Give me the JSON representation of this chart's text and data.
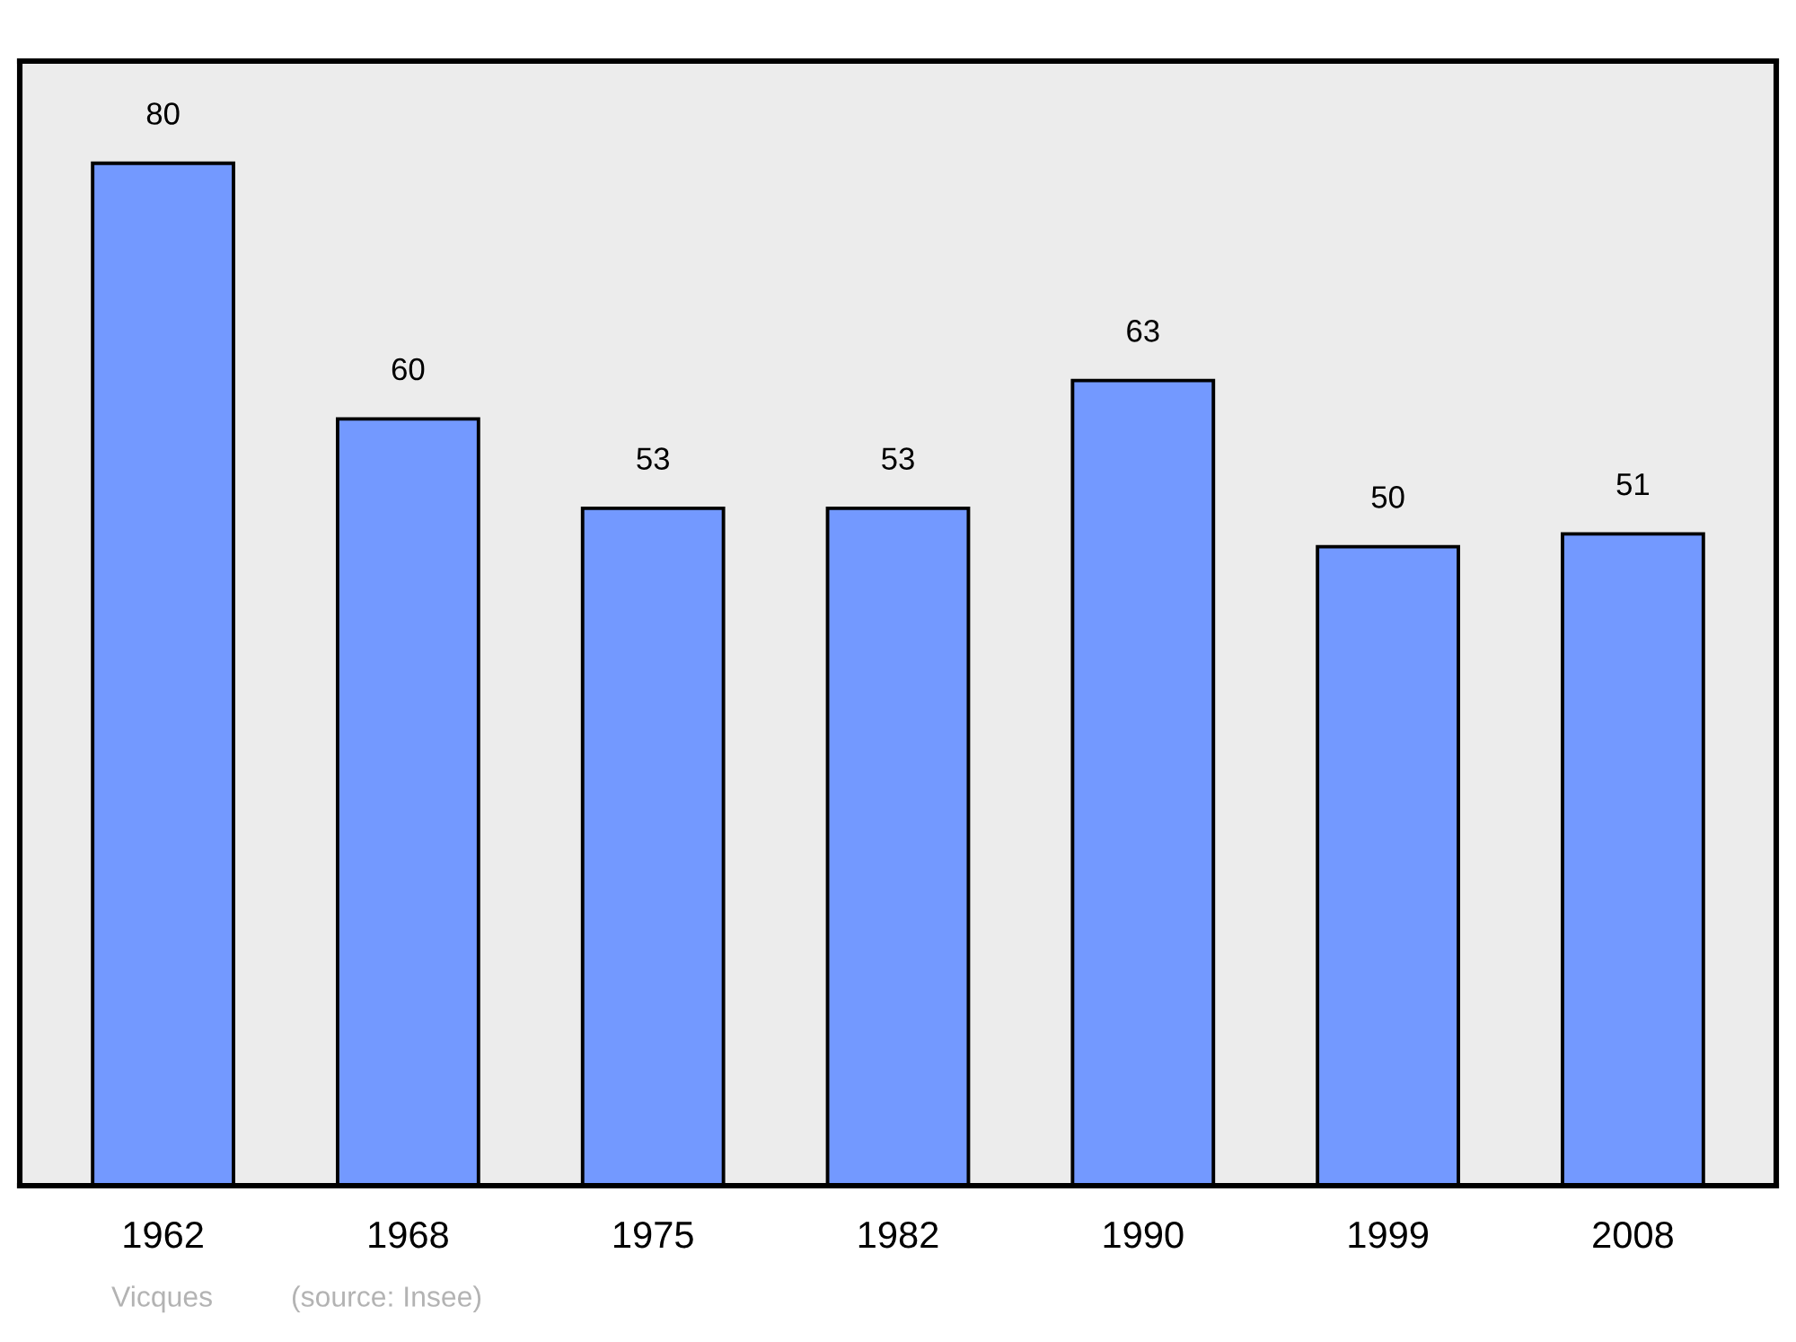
{
  "chart_data": {
    "type": "bar",
    "categories": [
      "1962",
      "1968",
      "1975",
      "1982",
      "1990",
      "1999",
      "2008"
    ],
    "values": [
      80,
      60,
      53,
      53,
      63,
      50,
      51
    ],
    "color": "#7399ff",
    "ylim": [
      0,
      88
    ],
    "tick_labels": "x",
    "data_labels": true,
    "grid": false,
    "legend": false,
    "annotations": [
      "Vicques",
      "(source: Insee)"
    ]
  }
}
